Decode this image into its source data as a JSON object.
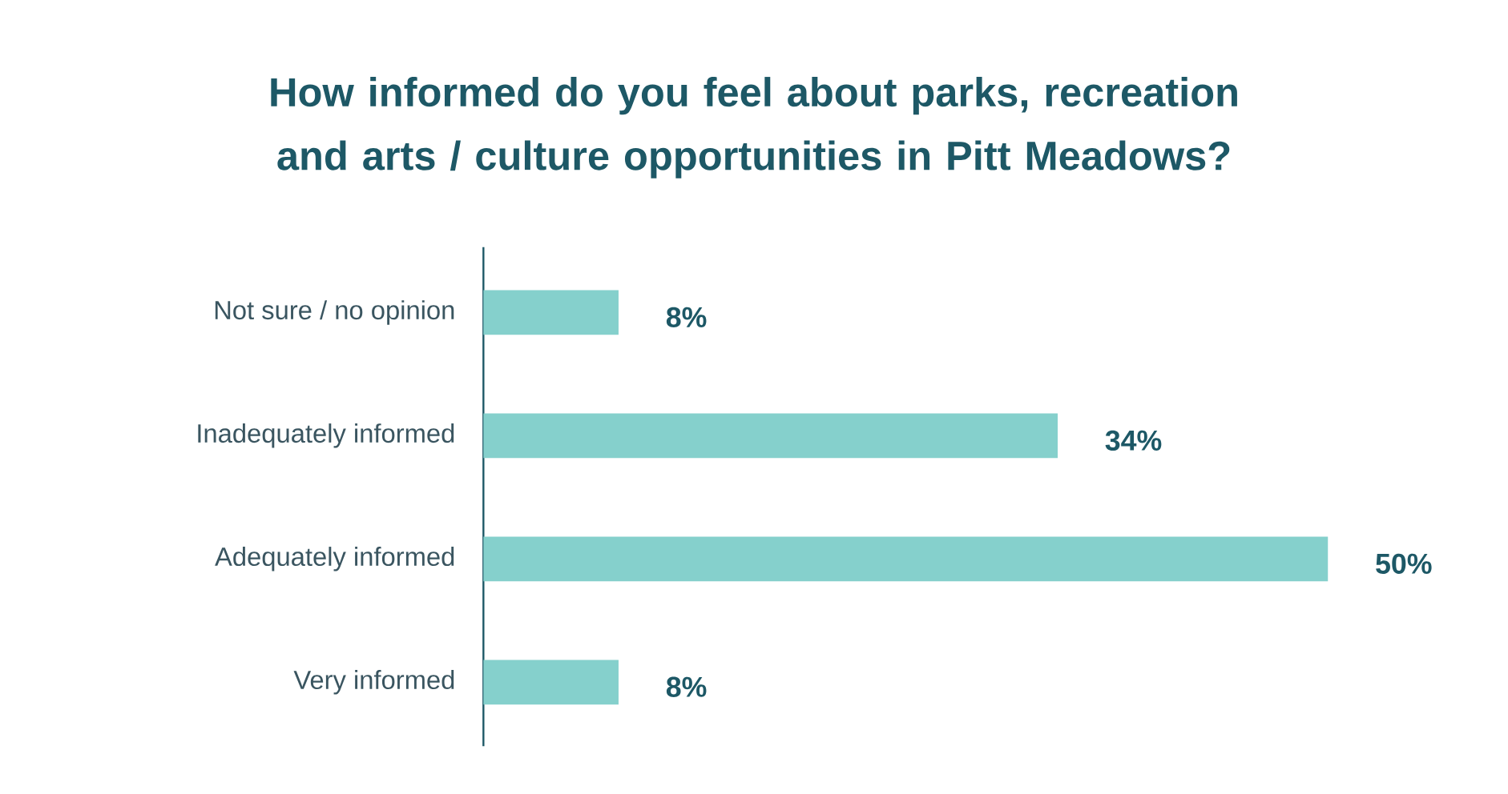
{
  "chart_data": {
    "type": "bar",
    "orientation": "horizontal",
    "title": "How informed do you feel about parks, recreation and arts / culture opportunities in Pitt Meadows?",
    "categories": [
      "Not sure / no opinion",
      "Inadequately informed",
      "Adequately informed",
      "Very informed"
    ],
    "values": [
      8,
      34,
      50,
      8
    ],
    "value_labels": [
      "8%",
      "34%",
      "50%",
      "8%"
    ],
    "color": "#85d0cc"
  }
}
